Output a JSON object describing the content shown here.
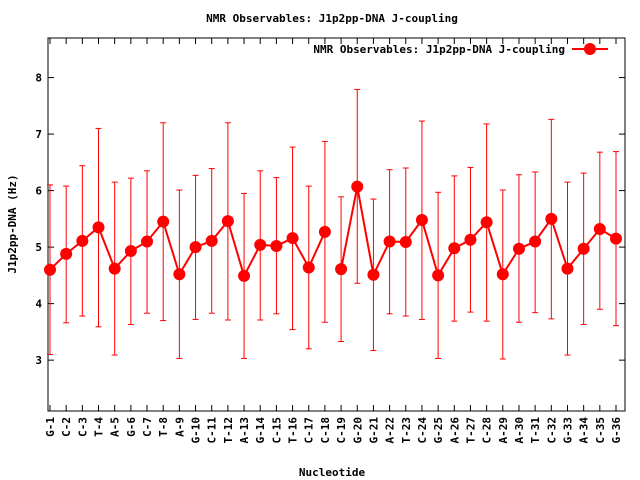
{
  "chart_data": {
    "type": "line",
    "title": "NMR Observables: J1p2pp-DNA J-coupling",
    "xlabel": "Nucleotide",
    "ylabel": "J1p2pp-DNA (Hz)",
    "ylim": [
      2.1,
      8.7
    ],
    "yticks": [
      3,
      4,
      5,
      6,
      7,
      8
    ],
    "legend": {
      "position": "top-right"
    },
    "categories": [
      "G-1",
      "C-2",
      "C-3",
      "T-4",
      "A-5",
      "G-6",
      "C-7",
      "T-8",
      "A-9",
      "G-10",
      "C-11",
      "T-12",
      "A-13",
      "G-14",
      "C-15",
      "T-16",
      "C-17",
      "C-18",
      "C-19",
      "G-20",
      "G-21",
      "A-22",
      "T-23",
      "C-24",
      "G-25",
      "A-26",
      "T-27",
      "C-28",
      "A-29",
      "A-30",
      "T-31",
      "C-32",
      "G-33",
      "A-34",
      "C-35",
      "G-36"
    ],
    "series": [
      {
        "name": "NMR Observables: J1p2pp-DNA J-coupling",
        "color": "#ff0000",
        "values": [
          4.6,
          4.88,
          5.11,
          5.35,
          4.62,
          4.93,
          5.1,
          5.45,
          4.52,
          5.0,
          5.11,
          5.46,
          4.49,
          5.04,
          5.02,
          5.16,
          4.64,
          5.27,
          4.61,
          6.07,
          4.51,
          5.1,
          5.09,
          5.48,
          4.5,
          4.98,
          5.13,
          5.44,
          4.52,
          4.97,
          5.1,
          5.5,
          4.62,
          4.97,
          5.32,
          5.15
        ],
        "err_low": [
          3.1,
          3.66,
          3.78,
          3.59,
          3.09,
          3.63,
          3.83,
          3.7,
          3.03,
          3.72,
          3.83,
          3.71,
          3.03,
          3.71,
          3.82,
          3.54,
          3.2,
          3.67,
          3.33,
          4.36,
          3.17,
          3.82,
          3.78,
          3.72,
          3.03,
          3.69,
          3.85,
          3.69,
          3.02,
          3.67,
          3.84,
          3.73,
          3.09,
          3.63,
          3.9,
          3.61
        ],
        "err_high": [
          6.1,
          6.08,
          6.44,
          7.1,
          6.15,
          6.22,
          6.35,
          7.2,
          6.01,
          6.27,
          6.39,
          7.2,
          5.95,
          6.35,
          6.23,
          6.77,
          6.08,
          6.87,
          5.89,
          7.79,
          5.85,
          6.37,
          6.4,
          7.23,
          5.97,
          6.26,
          6.41,
          7.18,
          6.01,
          6.28,
          6.33,
          7.26,
          6.15,
          6.31,
          6.68,
          6.69
        ],
        "segments": [
          [
            0,
            17
          ],
          [
            18,
            35
          ]
        ]
      }
    ]
  }
}
